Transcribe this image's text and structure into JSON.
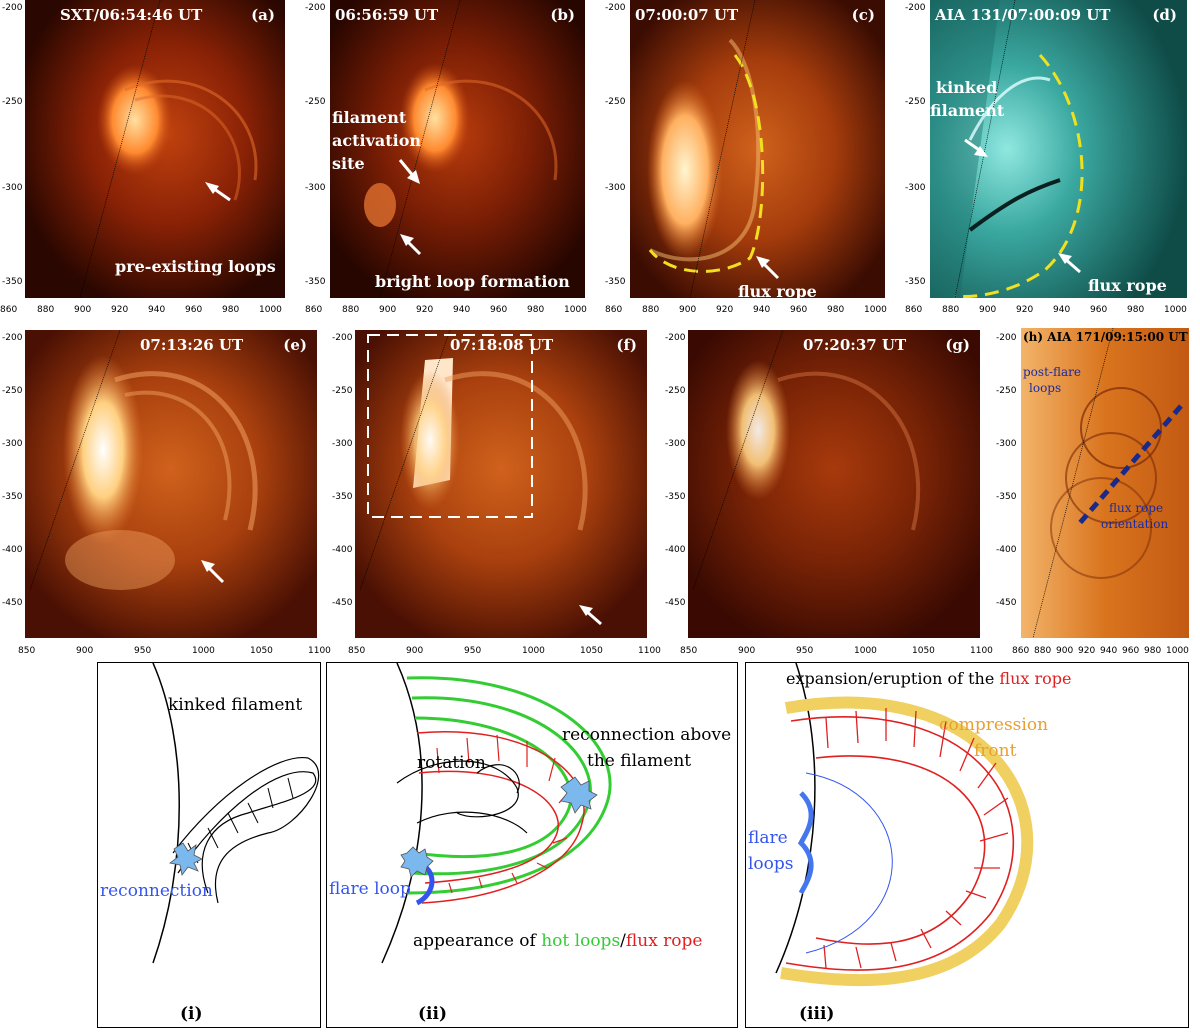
{
  "panels": {
    "a": {
      "title": "SXT/06:54:46 UT",
      "letter": "(a)",
      "note": "pre-existing loops"
    },
    "b": {
      "title": "06:56:59 UT",
      "letter": "(b)",
      "note1": "filament",
      "note2": "activation",
      "note3": "site",
      "note4": "bright loop formation"
    },
    "c": {
      "title": "07:00:07 UT",
      "letter": "(c)",
      "note": "flux rope"
    },
    "d": {
      "title": "AIA 131/07:00:09 UT",
      "letter": "(d)",
      "note1": "kinked",
      "note2": "filament",
      "note3": "flux rope"
    },
    "e": {
      "title": "07:13:26 UT",
      "letter": "(e)"
    },
    "f": {
      "title": "07:18:08 UT",
      "letter": "(f)"
    },
    "g": {
      "title": "07:20:37 UT",
      "letter": "(g)"
    },
    "h": {
      "title": "(h) AIA 171/09:15:00 UT",
      "note1": "post-flare",
      "note2": "loops",
      "note3": "flux rope",
      "note4": "orientation"
    }
  },
  "axes": {
    "top_y": [
      "-200",
      "-250",
      "-300",
      "-350"
    ],
    "top_x": [
      "860",
      "880",
      "900",
      "920",
      "940",
      "960",
      "980",
      "1000"
    ],
    "mid_y": [
      "-200",
      "-250",
      "-300",
      "-350",
      "-400",
      "-450"
    ],
    "mid_x": [
      "850",
      "900",
      "950",
      "1000",
      "1050",
      "1100"
    ],
    "h_x": [
      "860",
      "880",
      "900",
      "920",
      "940",
      "960",
      "980",
      "1000"
    ]
  },
  "sketches": {
    "i": {
      "label": "(i)",
      "kinked": "kinked filament",
      "reconnection": "reconnection"
    },
    "ii": {
      "label": "(ii)",
      "rotation": "rotation",
      "recon1": "reconnection above",
      "recon2": "the filament",
      "flare_loop": "flare loop",
      "appearance": "appearance of ",
      "hot": "hot loops",
      "slash": "/",
      "rope": "flux rope"
    },
    "iii": {
      "label": "(iii)",
      "title": "expansion/eruption of the ",
      "title_rope": "flux rope",
      "compression1": "compression",
      "compression2": "front",
      "flare1": "flare",
      "flare2": "loops"
    }
  },
  "colors": {
    "sxt_bg": "#2a0700",
    "aia131_bg": "#0f4c48",
    "aia171_bg": "#c25a12",
    "hot": "#33cc33",
    "rope": "#e02020",
    "flare": "#3355ee",
    "front": "#f0d060"
  }
}
